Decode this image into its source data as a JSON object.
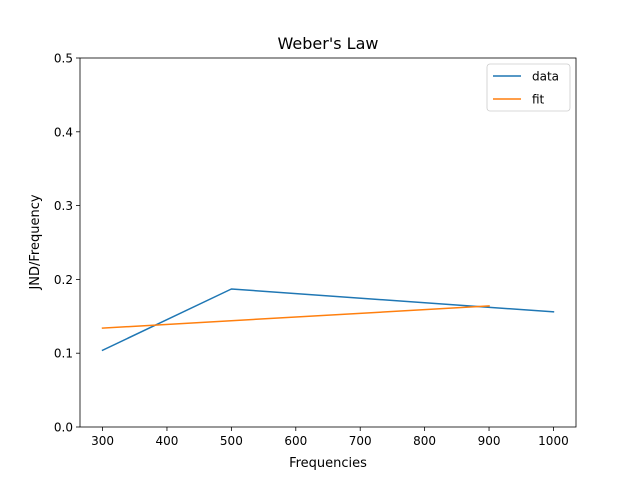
{
  "chart_data": {
    "type": "line",
    "title": "Weber's Law",
    "xlabel": "Frequencies",
    "ylabel": "JND/Frequency",
    "xlim": [
      265,
      1035
    ],
    "ylim": [
      0,
      0.5
    ],
    "xticks": [
      300,
      400,
      500,
      600,
      700,
      800,
      900,
      1000
    ],
    "yticks": [
      0.0,
      0.1,
      0.2,
      0.3,
      0.4,
      0.5
    ],
    "ytick_labels": [
      "0.0",
      "0.1",
      "0.2",
      "0.3",
      "0.4",
      "0.5"
    ],
    "grid": false,
    "legend_position": "top-right",
    "series": [
      {
        "name": "data",
        "color": "#1f77b4",
        "x": [
          300,
          500,
          1000
        ],
        "y": [
          0.104,
          0.187,
          0.156
        ]
      },
      {
        "name": "fit",
        "color": "#ff7f0e",
        "x": [
          300,
          900
        ],
        "y": [
          0.134,
          0.164
        ]
      }
    ]
  }
}
